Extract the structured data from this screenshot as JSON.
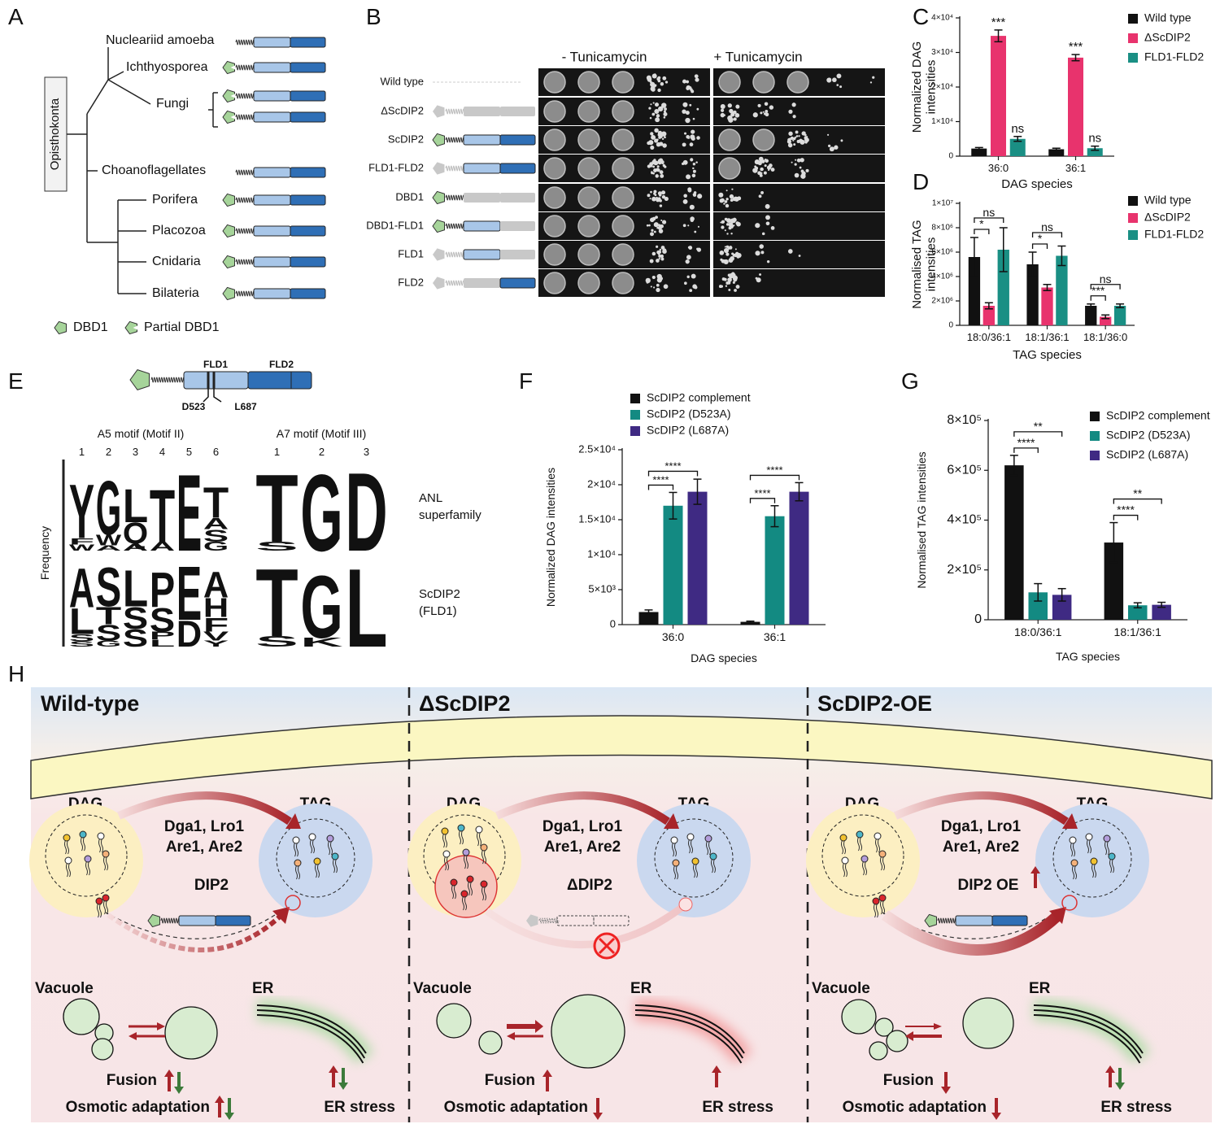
{
  "panel_labels": [
    "A",
    "B",
    "C",
    "D",
    "E",
    "F",
    "G",
    "H"
  ],
  "phylogeny": {
    "group": "Opisthokonta",
    "taxa": [
      "Nucleariid amoeba",
      "Ichthyosporea",
      "Fungi",
      "Choanoflagellates",
      "Porifera",
      "Placozoa",
      "Cnidaria",
      "Bilateria"
    ],
    "legend": [
      "DBD1",
      "Partial DBD1"
    ]
  },
  "growth_assay": {
    "conditions": [
      "- Tunicamycin",
      "+ Tunicamycin"
    ],
    "strains": [
      "Wild type",
      "ΔScDIP2",
      "ScDIP2",
      "FLD1-FLD2",
      "DBD1",
      "DBD1-FLD1",
      "FLD1",
      "FLD2"
    ]
  },
  "chart_data": [
    {
      "type": "bar",
      "categories": [
        "36:0",
        "36:1"
      ],
      "xlabel": "DAG species",
      "ylabel": [
        "Normalized DAG",
        "intensities"
      ],
      "ylim": [
        0,
        40000
      ],
      "yticks": [
        0,
        {
          "value": 10000,
          "label": "1×10⁴"
        },
        {
          "value": 20000,
          "label": "2×10⁴"
        },
        {
          "value": 30000,
          "label": "3×10⁴"
        },
        {
          "value": 40000,
          "label": "4×10⁴"
        }
      ],
      "brackets": false,
      "series": [
        {
          "name": "Wild type",
          "color": "#111111",
          "values": [
            2200,
            2000
          ],
          "errors": [
            300,
            300
          ]
        },
        {
          "name": "ΔScDIP2",
          "color": "#e8336d",
          "values": [
            34800,
            28500
          ],
          "errors": [
            1700,
            900
          ],
          "significance": [
            "***",
            "***"
          ],
          "significance_color": "#e0262b"
        },
        {
          "name": "FLD1-FLD2",
          "color": "#1a8f84",
          "values": [
            5000,
            2300
          ],
          "errors": [
            700,
            600
          ],
          "significance": [
            "ns",
            "ns"
          ],
          "significance_color": "#111111"
        }
      ]
    },
    {
      "type": "bar",
      "categories": [
        "18:0/36:1",
        "18:1/36:1",
        "18:1/36:0"
      ],
      "xlabel": "TAG species",
      "ylabel": [
        "Normalised TAG",
        "intensities"
      ],
      "ylim": [
        0,
        10000000
      ],
      "yticks": [
        0,
        {
          "value": 2000000,
          "label": "2×10⁶"
        },
        {
          "value": 4000000,
          "label": "4×10⁶"
        },
        {
          "value": 6000000,
          "label": "6×10⁶"
        },
        {
          "value": 8000000,
          "label": "8×10⁶"
        },
        {
          "value": 10000000,
          "label": "1×10⁷"
        }
      ],
      "brackets": true,
      "series": [
        {
          "name": "Wild type",
          "color": "#111111",
          "values": [
            5600000,
            5000000,
            1600000
          ],
          "errors": [
            1600000,
            1000000,
            150000
          ]
        },
        {
          "name": "ΔScDIP2",
          "color": "#e8336d",
          "values": [
            1600000,
            3100000,
            700000
          ],
          "errors": [
            250000,
            250000,
            150000
          ],
          "significance": [
            "*",
            "*",
            "***"
          ],
          "significance_color": "#e0262b"
        },
        {
          "name": "FLD1-FLD2",
          "color": "#1a8f84",
          "values": [
            6200000,
            5700000,
            1600000
          ],
          "errors": [
            1800000,
            800000,
            150000
          ],
          "significance": [
            "ns",
            "ns",
            "ns"
          ],
          "significance_color": "#111111"
        }
      ]
    },
    {
      "type": "bar",
      "categories": [
        "36:0",
        "36:1"
      ],
      "xlabel": "DAG species",
      "ylabel": "Normalized DAG intensities",
      "ylim": [
        0,
        25000
      ],
      "yticks": [
        0,
        {
          "value": 5000,
          "label": "5×10³"
        },
        {
          "value": 10000,
          "label": "1×10⁴"
        },
        {
          "value": 15000,
          "label": "1.5×10⁴"
        },
        {
          "value": 20000,
          "label": "2×10⁴"
        },
        {
          "value": 25000,
          "label": "2.5×10⁴"
        }
      ],
      "brackets": true,
      "series": [
        {
          "name": "ScDIP2 complement",
          "color": "#111111",
          "values": [
            1800,
            400
          ],
          "errors": [
            300,
            100
          ]
        },
        {
          "name": "ScDIP2 (D523A)",
          "color": "#138a82",
          "values": [
            17000,
            15500
          ],
          "errors": [
            1900,
            1500
          ],
          "significance": [
            "****",
            "****"
          ],
          "significance_color": "#e0262b"
        },
        {
          "name": "ScDIP2 (L687A)",
          "color": "#3f2a83",
          "values": [
            19000,
            19000
          ],
          "errors": [
            1800,
            1300
          ],
          "significance": [
            "****",
            "****"
          ],
          "significance_color": "#e0262b"
        }
      ]
    },
    {
      "type": "bar",
      "categories": [
        "18:0/36:1",
        "18:1/36:1"
      ],
      "xlabel": "TAG species",
      "ylabel": "Normalised TAG intensities",
      "ylim": [
        0,
        800000
      ],
      "yticks": [
        0,
        {
          "value": 200000,
          "label": "2×10⁵"
        },
        {
          "value": 400000,
          "label": "4×10⁵"
        },
        {
          "value": 600000,
          "label": "6×10⁵"
        },
        {
          "value": 800000,
          "label": "8×10⁵"
        }
      ],
      "brackets": true,
      "series": [
        {
          "name": "ScDIP2 complement",
          "color": "#111111",
          "values": [
            620000,
            310000
          ],
          "errors": [
            40000,
            80000
          ]
        },
        {
          "name": "ScDIP2 (D523A)",
          "color": "#138a82",
          "values": [
            110000,
            58000
          ],
          "errors": [
            35000,
            10000
          ],
          "significance": [
            "****",
            "****"
          ],
          "significance_color": "#e0262b"
        },
        {
          "name": "ScDIP2 (L687A)",
          "color": "#3f2a83",
          "values": [
            100000,
            60000
          ],
          "errors": [
            25000,
            10000
          ],
          "significance": [
            "**",
            "**"
          ],
          "significance_color": "#e0262b"
        }
      ]
    }
  ],
  "motifs": {
    "domains": [
      "FLD1",
      "FLD2"
    ],
    "residues": [
      "D523",
      "L687"
    ],
    "motif_titles": [
      "A5 motif (Motif II)",
      "A7  motif (Motif III)"
    ],
    "a5_positions": [
      1,
      2,
      3,
      4,
      5,
      6
    ],
    "a7_positions": [
      1,
      2,
      3
    ],
    "ylabel": "Frequency",
    "rows": [
      {
        "name": [
          "ANL",
          "superfamily"
        ],
        "a5": [
          [
            [
              "Y",
              "#b6dcb1",
              0.62
            ],
            [
              "F",
              "#9a9a9a",
              0.07
            ],
            [
              "W",
              "#b6dcb1",
              0.07
            ]
          ],
          [
            [
              "G",
              "#b6dcb1",
              0.62
            ],
            [
              "W",
              "#9a9a9a",
              0.12
            ],
            [
              "A",
              "#9a9a9a",
              0.06
            ]
          ],
          [
            [
              "L",
              "#9a9a9a",
              0.38
            ],
            [
              "Q",
              "#d9a6d3",
              0.24
            ],
            [
              "A",
              "#9a9a9a",
              0.08
            ]
          ],
          [
            [
              "T",
              "#b6dcb1",
              0.6
            ],
            [
              "A",
              "#9a9a9a",
              0.1
            ]
          ],
          [
            [
              "E",
              "#d7191f",
              0.88
            ]
          ],
          [
            [
              "T",
              "#b6dcb1",
              0.35
            ],
            [
              "A",
              "#9a9a9a",
              0.13
            ],
            [
              "S",
              "#b6dcb1",
              0.14
            ],
            [
              "G",
              "#b6dcb1",
              0.1
            ]
          ]
        ],
        "a7": [
          [
            [
              "T",
              "#b6dcb1",
              0.78
            ],
            [
              "S",
              "#b6dcb1",
              0.1
            ]
          ],
          [
            [
              "G",
              "#b6dcb1",
              0.88
            ]
          ],
          [
            [
              "D",
              "#d7191f",
              0.9
            ]
          ]
        ]
      },
      {
        "name": [
          "ScDIP2",
          "(FLD1)"
        ],
        "a5": [
          [
            [
              "A",
              "#9a9a9a",
              0.45
            ],
            [
              "L",
              "#9a9a9a",
              0.3
            ],
            [
              "S",
              "#b6dcb1",
              0.08
            ],
            [
              "S",
              "#b6dcb1",
              0.06
            ]
          ],
          [
            [
              "S",
              "#b6dcb1",
              0.45
            ],
            [
              "T",
              "#9a9a9a",
              0.2
            ],
            [
              "S",
              "#b6dcb1",
              0.18
            ],
            [
              "G",
              "#b6dcb1",
              0.07
            ]
          ],
          [
            [
              "L",
              "#9a9a9a",
              0.42
            ],
            [
              "S",
              "#b6dcb1",
              0.25
            ],
            [
              "S",
              "#b6dcb1",
              0.2
            ]
          ],
          [
            [
              "P",
              "#9a9a9a",
              0.4
            ],
            [
              "S",
              "#b6dcb1",
              0.27
            ],
            [
              "P",
              "#e3a0a0",
              0.09
            ],
            [
              "L",
              "#e3a0a0",
              0.08
            ]
          ],
          [
            [
              "E",
              "#d7191f",
              0.62
            ],
            [
              "D",
              "#d7191f",
              0.3
            ]
          ],
          [
            [
              "A",
              "#9a9a9a",
              0.3
            ],
            [
              "H",
              "#a9b9de",
              0.22
            ],
            [
              "F",
              "#9a9a9a",
              0.16
            ],
            [
              "V",
              "#9a9a9a",
              0.1
            ],
            [
              "Y",
              "#b6dcb1",
              0.07
            ]
          ]
        ],
        "a7": [
          [
            [
              "T",
              "#b6dcb1",
              0.78
            ],
            [
              "S",
              "#b6dcb1",
              0.12
            ]
          ],
          [
            [
              "G",
              "#b6dcb1",
              0.72
            ],
            [
              "K",
              "#a9b9de",
              0.1
            ]
          ],
          [
            [
              "L",
              "#111111",
              0.9
            ]
          ]
        ]
      }
    ]
  },
  "model": {
    "columns": [
      {
        "title": "Wild-type",
        "dip2": "DIP2"
      },
      {
        "title": "ΔScDIP2",
        "dip2": "ΔDIP2"
      },
      {
        "title": "ScDIP2-OE",
        "dip2": "DIP2 OE"
      }
    ],
    "dag": "DAG",
    "tag": "TAG",
    "enzymes": [
      "Dga1, Lro1",
      "Are1, Are2"
    ],
    "vacuole": "Vacuole",
    "er": "ER",
    "fusion": "Fusion",
    "osmotic": "Osmotic adaptation",
    "er_stress": "ER stress"
  }
}
